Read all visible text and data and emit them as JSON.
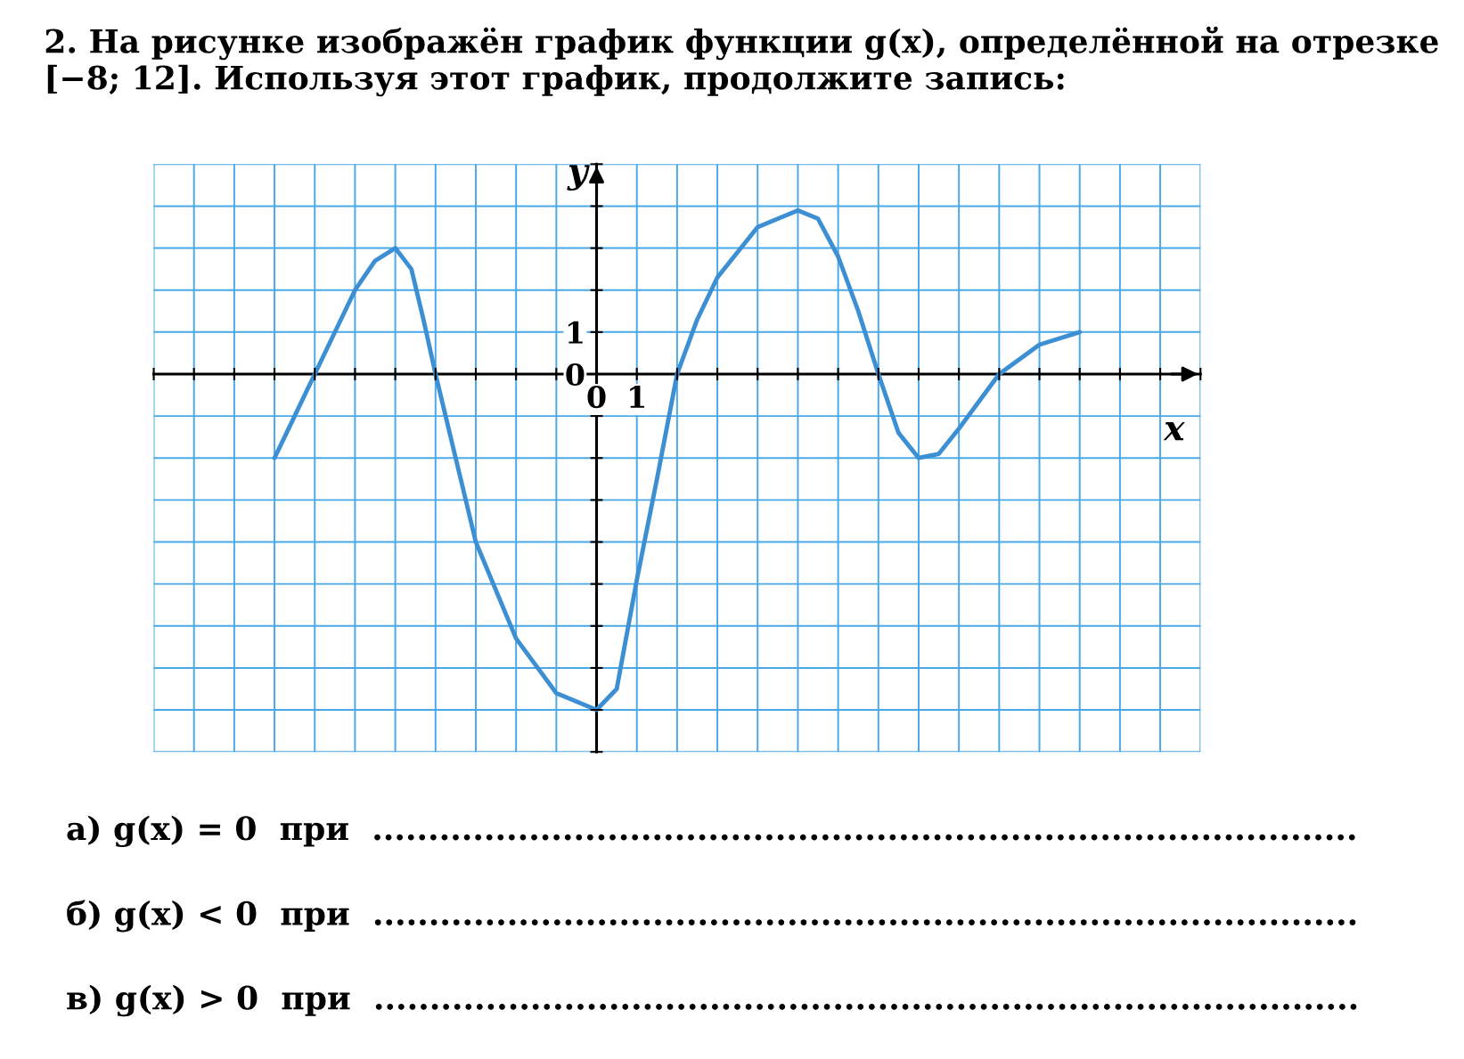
{
  "chart_data": {
    "type": "line",
    "title": "2. На рисунке изображён график функции g(x), определённой на отрезке [−8; 12]. Используя этот график, продолжите запись:",
    "xlabel": "x",
    "ylabel": "y",
    "x": [
      -8,
      -7.5,
      -7,
      -6,
      -5.5,
      -5,
      -4.6,
      -4.3,
      -4,
      -3,
      -2,
      -1,
      0,
      0.5,
      1,
      1.5,
      2,
      2.5,
      3,
      4,
      5,
      5.5,
      6,
      6.5,
      7,
      7.5,
      8,
      8.5,
      9,
      10,
      11,
      12
    ],
    "series": [
      {
        "color": "#3d8fd4",
        "values": [
          -2,
          -1,
          0,
          2,
          2.7,
          3,
          2.5,
          1.3,
          0,
          -4,
          -6.3,
          -7.6,
          -8,
          -7.5,
          -4.9,
          -2.5,
          0,
          1.3,
          2.3,
          3.5,
          3.9,
          3.7,
          2.8,
          1.5,
          0,
          -1.4,
          -2,
          -1.9,
          -1.3,
          0,
          0.7,
          1
        ]
      }
    ],
    "xlim": [
      -11,
      15
    ],
    "ylim": [
      -9,
      5
    ],
    "xticks": [
      {
        "value": -11,
        "label": null
      },
      {
        "value": -10,
        "label": null
      },
      {
        "value": -9,
        "label": null
      },
      {
        "value": -8,
        "label": null
      },
      {
        "value": -7,
        "label": null
      },
      {
        "value": -6,
        "label": null
      },
      {
        "value": -5,
        "label": null
      },
      {
        "value": -4,
        "label": null
      },
      {
        "value": -3,
        "label": null
      },
      {
        "value": -2,
        "label": null
      },
      {
        "value": -1,
        "label": null
      },
      0,
      1,
      {
        "value": 2,
        "label": null
      },
      {
        "value": 3,
        "label": null
      },
      {
        "value": 4,
        "label": null
      },
      {
        "value": 5,
        "label": null
      },
      {
        "value": 6,
        "label": null
      },
      {
        "value": 7,
        "label": null
      },
      {
        "value": 8,
        "label": null
      },
      {
        "value": 9,
        "label": null
      },
      {
        "value": 10,
        "label": null
      },
      {
        "value": 11,
        "label": null
      },
      {
        "value": 12,
        "label": null
      },
      {
        "value": 13,
        "label": null
      },
      {
        "value": 14,
        "label": null
      },
      {
        "value": 15,
        "label": null
      }
    ],
    "yticks": [
      {
        "value": -9,
        "label": null
      },
      {
        "value": -8,
        "label": null
      },
      {
        "value": -7,
        "label": null
      },
      {
        "value": -6,
        "label": null
      },
      {
        "value": -5,
        "label": null
      },
      {
        "value": -4,
        "label": null
      },
      {
        "value": -3,
        "label": null
      },
      {
        "value": -2,
        "label": null
      },
      {
        "value": -1,
        "label": null
      },
      0,
      1,
      {
        "value": 2,
        "label": null
      },
      {
        "value": 3,
        "label": null
      },
      {
        "value": 4,
        "label": null
      },
      {
        "value": 5,
        "label": null
      }
    ],
    "grid": true,
    "marker": "none",
    "line_style": "solid",
    "annotations": [
      "а) g(x) = 0  при  ........................................................................................",
      "б) g(x) < 0  при  ........................................................................................",
      "в) g(x) > 0  при  ........................................................................................"
    ]
  }
}
